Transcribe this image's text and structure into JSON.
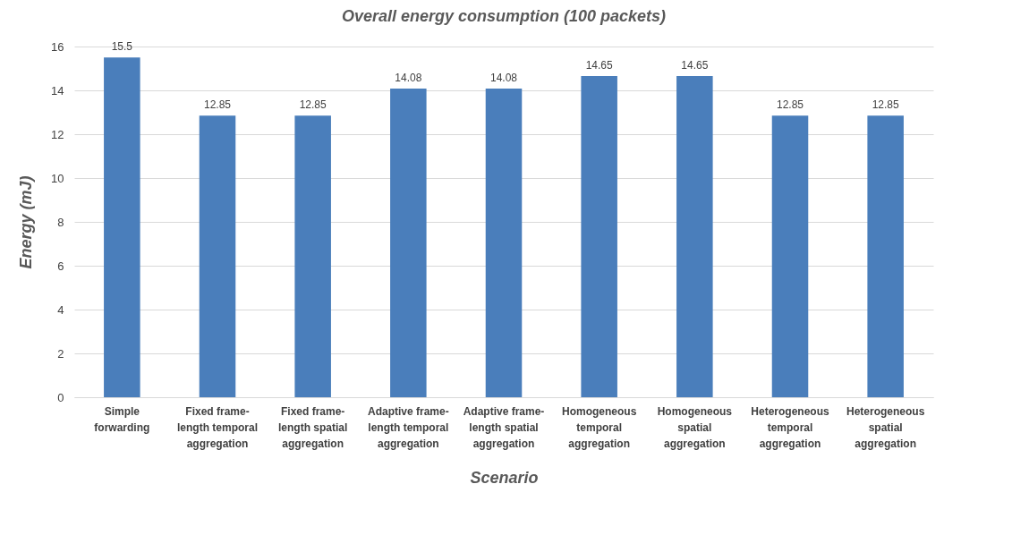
{
  "chart_data": {
    "type": "bar",
    "title": "Overall energy consumption (100 packets)",
    "xlabel": "Scenario",
    "ylabel": "Energy (mJ)",
    "categories": [
      "Simple forwarding",
      "Fixed frame-length temporal aggregation",
      "Fixed frame-length spatial aggregation",
      "Adaptive frame-length temporal aggregation",
      "Adaptive frame-length spatial aggregation",
      "Homogeneous temporal aggregation",
      "Homogeneous spatial aggregation",
      "Heterogeneous temporal aggregation",
      "Heterogeneous spatial aggregation"
    ],
    "values": [
      15.5,
      12.85,
      12.85,
      14.08,
      14.08,
      14.65,
      14.65,
      12.85,
      12.85
    ],
    "color": "#4a7ebb",
    "ylim": [
      0,
      16
    ],
    "yticks": [
      0,
      2,
      4,
      6,
      8,
      10,
      12,
      14,
      16
    ],
    "grid": true,
    "data_labels": true
  }
}
